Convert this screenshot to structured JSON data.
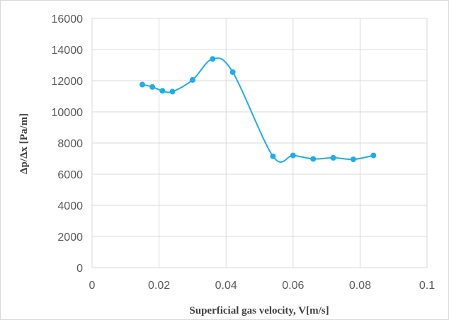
{
  "chart_data": {
    "type": "scatter",
    "title": "",
    "xlabel": "Superficial gas velocity, V[m/s]",
    "ylabel": "Δp/Δx [Pa/m]",
    "xlim": [
      0,
      0.1
    ],
    "ylim": [
      0,
      16000
    ],
    "x_ticks": [
      0,
      0.02,
      0.04,
      0.06,
      0.08,
      0.1
    ],
    "y_ticks": [
      0,
      2000,
      4000,
      6000,
      8000,
      10000,
      12000,
      14000,
      16000
    ],
    "grid": true,
    "smooth_line": true,
    "legend": "none",
    "series_color": "#1cadec",
    "series": [
      {
        "x": [
          0.015,
          0.018,
          0.021,
          0.024,
          0.03,
          0.036,
          0.042,
          0.054,
          0.06,
          0.066,
          0.072,
          0.078,
          0.084
        ],
        "y": [
          11750,
          11600,
          11350,
          11300,
          12050,
          13400,
          12550,
          7150,
          7200,
          6980,
          7050,
          6950,
          7200
        ]
      }
    ]
  }
}
